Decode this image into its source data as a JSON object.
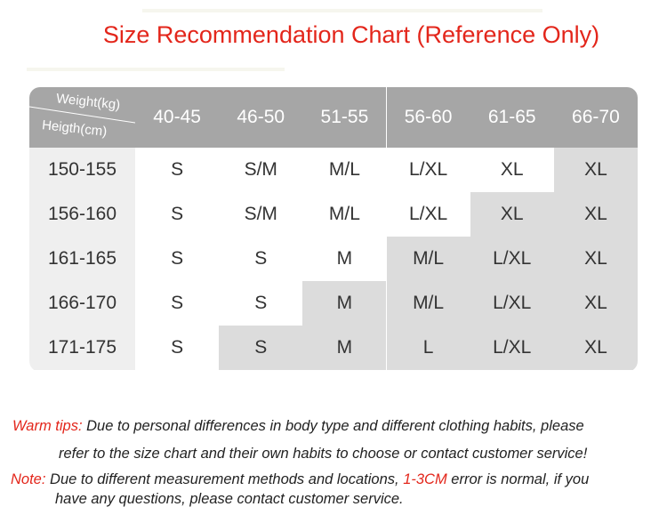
{
  "title": "Size Recommendation Chart (Reference Only)",
  "table": {
    "corner": {
      "top": "Weight(kg)",
      "bottom": "Heigth(cm)"
    },
    "columns": [
      "40-45",
      "46-50",
      "51-55",
      "56-60",
      "61-65",
      "66-70"
    ],
    "rows": [
      {
        "height": "150-155",
        "sizes": [
          "S",
          "S/M",
          "M/L",
          "L/XL",
          "XL",
          "XL"
        ]
      },
      {
        "height": "156-160",
        "sizes": [
          "S",
          "S/M",
          "M/L",
          "L/XL",
          "XL",
          "XL"
        ]
      },
      {
        "height": "161-165",
        "sizes": [
          "S",
          "S",
          "M",
          "M/L",
          "L/XL",
          "XL"
        ]
      },
      {
        "height": "166-170",
        "sizes": [
          "S",
          "S",
          "M",
          "M/L",
          "L/XL",
          "XL"
        ]
      },
      {
        "height": "171-175",
        "sizes": [
          "S",
          "S",
          "M",
          "L",
          "L/XL",
          "XL"
        ]
      }
    ]
  },
  "tips": {
    "label": "Warm tips:",
    "lines": [
      "Due to personal differences in body type and different clothing habits, please",
      "refer to the size chart and their own habits to choose or contact customer service!"
    ]
  },
  "note": {
    "label": "Note:",
    "text_before": "Due to different measurement methods and locations,",
    "highlight": "1-3CM",
    "text_after": "error is normal, if you",
    "line2": "have any questions, please contact customer service."
  }
}
